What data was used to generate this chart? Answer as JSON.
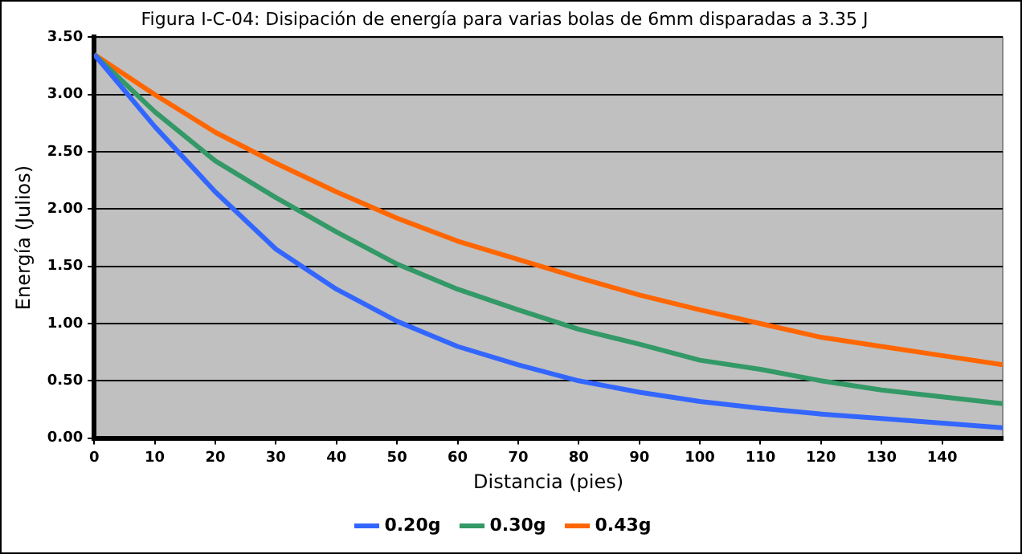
{
  "chart_data": {
    "type": "line",
    "title": "Figura I-C-04: Disipación de energía para varias bolas de 6mm disparadas a 3.35 J",
    "xlabel": "Distancia (pies)",
    "ylabel": "Energía (Julios)",
    "x": [
      0,
      10,
      20,
      30,
      40,
      50,
      60,
      70,
      80,
      90,
      100,
      110,
      120,
      130,
      140,
      150
    ],
    "series": [
      {
        "name": "0.20g",
        "color": "#3366ff",
        "values": [
          3.35,
          2.72,
          2.15,
          1.65,
          1.3,
          1.02,
          0.8,
          0.64,
          0.5,
          0.4,
          0.32,
          0.26,
          0.21,
          0.17,
          0.13,
          0.09
        ]
      },
      {
        "name": "0.30g",
        "color": "#339966",
        "values": [
          3.35,
          2.85,
          2.42,
          2.1,
          1.8,
          1.52,
          1.3,
          1.12,
          0.95,
          0.82,
          0.68,
          0.6,
          0.5,
          0.42,
          0.36,
          0.3
        ]
      },
      {
        "name": "0.43g",
        "color": "#ff6600",
        "values": [
          3.35,
          3.0,
          2.67,
          2.4,
          2.15,
          1.92,
          1.72,
          1.56,
          1.4,
          1.25,
          1.12,
          1.0,
          0.88,
          0.8,
          0.72,
          0.64
        ]
      }
    ],
    "xlim": [
      0,
      150
    ],
    "xticks": [
      0,
      10,
      20,
      30,
      40,
      50,
      60,
      70,
      80,
      90,
      100,
      110,
      120,
      130,
      140
    ],
    "ylim": [
      0,
      3.5
    ],
    "yticks": [
      {
        "value": 0,
        "label": "0.00"
      },
      {
        "value": 0.5,
        "label": "0.50"
      },
      {
        "value": 1,
        "label": "1.00"
      },
      {
        "value": 1.5,
        "label": "1.50"
      },
      {
        "value": 2,
        "label": "2.00"
      },
      {
        "value": 2.5,
        "label": "2.50"
      },
      {
        "value": 3,
        "label": "3.00"
      },
      {
        "value": 3.5,
        "label": "3.50"
      }
    ],
    "grid": "y",
    "legend": "bottom",
    "marker": "none",
    "line_style": "solid"
  }
}
